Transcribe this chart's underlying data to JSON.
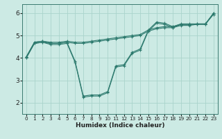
{
  "xlabel": "Humidex (Indice chaleur)",
  "background_color": "#cceae4",
  "line_color": "#2d7a6e",
  "grid_color": "#aad4cc",
  "xlim": [
    -0.5,
    23.5
  ],
  "ylim": [
    1.5,
    6.4
  ],
  "xticks": [
    0,
    1,
    2,
    3,
    4,
    5,
    6,
    7,
    8,
    9,
    10,
    11,
    12,
    13,
    14,
    15,
    16,
    17,
    18,
    19,
    20,
    21,
    22,
    23
  ],
  "yticks": [
    2,
    3,
    4,
    5,
    6
  ],
  "lines": [
    {
      "x": [
        0,
        1,
        2,
        3,
        4,
        5,
        6,
        7,
        8,
        9,
        10,
        11,
        12,
        13,
        14,
        15,
        16,
        17,
        18,
        19,
        20,
        21,
        22,
        23
      ],
      "y": [
        4.0,
        4.65,
        4.7,
        4.65,
        4.65,
        4.7,
        4.65,
        4.65,
        4.7,
        4.75,
        4.8,
        4.85,
        4.9,
        4.95,
        5.0,
        5.2,
        5.3,
        5.35,
        5.35,
        5.45,
        5.45,
        5.5,
        5.5,
        5.95
      ]
    },
    {
      "x": [
        0,
        1,
        2,
        3,
        4,
        5,
        6,
        7,
        8,
        9,
        10,
        11,
        12,
        13,
        14,
        15,
        16,
        17,
        18,
        19,
        20,
        21,
        22,
        23
      ],
      "y": [
        4.05,
        4.7,
        4.75,
        4.7,
        4.7,
        4.75,
        4.7,
        4.7,
        4.75,
        4.8,
        4.85,
        4.9,
        4.95,
        5.0,
        5.05,
        5.25,
        5.35,
        5.4,
        5.4,
        5.5,
        5.5,
        5.52,
        5.52,
        6.0
      ]
    },
    {
      "x": [
        0,
        1,
        2,
        3,
        4,
        5,
        6,
        7,
        8,
        9,
        10,
        11,
        12,
        13,
        14,
        15,
        16,
        17,
        18,
        19,
        20,
        21,
        22,
        23
      ],
      "y": [
        4.0,
        4.65,
        4.7,
        4.6,
        4.6,
        4.65,
        3.8,
        2.25,
        2.3,
        2.3,
        2.45,
        3.6,
        3.65,
        4.2,
        4.35,
        5.2,
        5.55,
        5.5,
        5.35,
        5.5,
        5.5,
        5.5,
        5.5,
        6.0
      ]
    },
    {
      "x": [
        0,
        1,
        2,
        3,
        4,
        5,
        6,
        7,
        8,
        9,
        10,
        11,
        12,
        13,
        14,
        15,
        16,
        17,
        18,
        19,
        20,
        21,
        22,
        23
      ],
      "y": [
        4.05,
        4.7,
        4.75,
        4.65,
        4.65,
        4.7,
        3.85,
        2.3,
        2.35,
        2.35,
        2.5,
        3.65,
        3.7,
        4.25,
        4.4,
        5.25,
        5.6,
        5.55,
        5.4,
        5.52,
        5.52,
        5.52,
        5.52,
        5.95
      ]
    }
  ]
}
